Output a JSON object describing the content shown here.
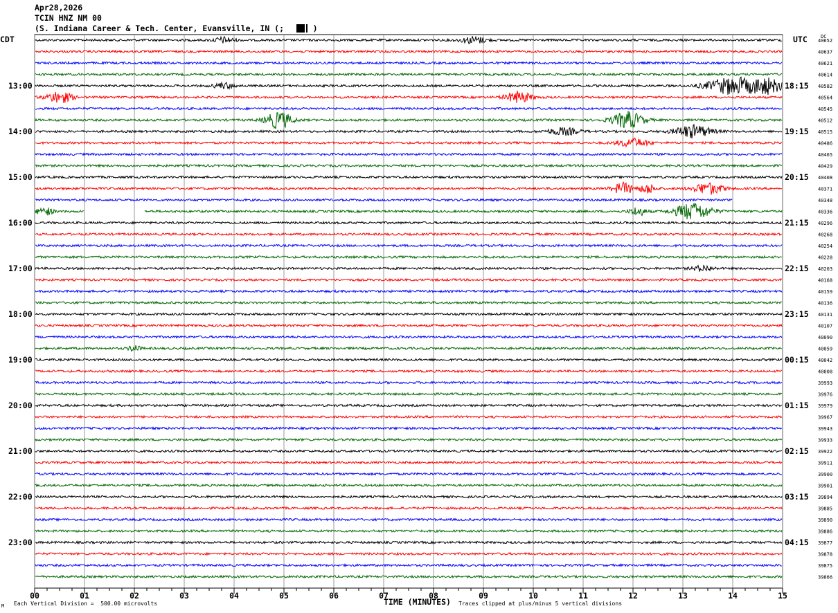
{
  "header": {
    "date": "Apr28,2026",
    "station": "TCIN HNZ NM 00",
    "location": "(S. Indiana Career & Tech. Center, Evansville, IN (;      )"
  },
  "left_timezone": "CDT",
  "right_timezone": "UTC",
  "dc_label": "DC",
  "colors": {
    "cycle": [
      "#000000",
      "#ff0000",
      "#0000ff",
      "#006600"
    ],
    "grid": "#808080"
  },
  "chart_data": {
    "type": "line",
    "title": "",
    "xlabel": "TIME (MINUTES)",
    "xlim": [
      0,
      15
    ],
    "x_ticks": [
      "00",
      "01",
      "02",
      "03",
      "04",
      "05",
      "06",
      "07",
      "08",
      "09",
      "10",
      "11",
      "12",
      "13",
      "14",
      "15"
    ],
    "left_hour_labels": [
      "13:00",
      "14:00",
      "15:00",
      "16:00",
      "17:00",
      "18:00",
      "19:00",
      "20:00",
      "21:00",
      "22:00",
      "23:00"
    ],
    "right_hour_labels": [
      "18:15",
      "19:15",
      "20:15",
      "21:15",
      "22:15",
      "23:15",
      "00:15",
      "01:15",
      "02:15",
      "03:15",
      "04:15"
    ],
    "hour_label_first_trace": 4,
    "dc_values": [
      "40652",
      "40637",
      "40621",
      "40614",
      "40582",
      "40564",
      "40545",
      "40512",
      "40515",
      "40486",
      "40465",
      "40429",
      "40408",
      "40371",
      "40348",
      "40336",
      "40296",
      "40268",
      "40254",
      "40228",
      "40203",
      "40168",
      "40159",
      "40136",
      "40131",
      "40107",
      "40090",
      "40059",
      "40042",
      "40008",
      "39993",
      "39976",
      "39979",
      "39967",
      "39943",
      "39933",
      "39922",
      "39911",
      "39900",
      "39901",
      "39894",
      "39885",
      "39890",
      "39886",
      "39877",
      "39878",
      "39875",
      "39866"
    ],
    "trace_count": 48,
    "minutes_per_trace": 15,
    "events": [
      {
        "trace": 0,
        "t": 8.8,
        "w": 0.25,
        "a": 5
      },
      {
        "trace": 0,
        "t": 3.8,
        "w": 0.2,
        "a": 4
      },
      {
        "trace": 4,
        "t": 14.0,
        "w": 0.5,
        "a": 12
      },
      {
        "trace": 4,
        "t": 14.7,
        "w": 0.3,
        "a": 10
      },
      {
        "trace": 4,
        "t": 3.8,
        "w": 0.2,
        "a": 4
      },
      {
        "trace": 5,
        "t": 0.5,
        "w": 0.25,
        "a": 8
      },
      {
        "trace": 5,
        "t": 9.7,
        "w": 0.25,
        "a": 8
      },
      {
        "trace": 7,
        "t": 4.9,
        "w": 0.25,
        "a": 12
      },
      {
        "trace": 7,
        "t": 11.9,
        "w": 0.3,
        "a": 12
      },
      {
        "trace": 8,
        "t": 13.2,
        "w": 0.35,
        "a": 9
      },
      {
        "trace": 8,
        "t": 10.6,
        "w": 0.3,
        "a": 5
      },
      {
        "trace": 9,
        "t": 12.0,
        "w": 0.3,
        "a": 6
      },
      {
        "trace": 13,
        "t": 11.8,
        "w": 0.2,
        "a": 8
      },
      {
        "trace": 13,
        "t": 12.3,
        "w": 0.15,
        "a": 7
      },
      {
        "trace": 13,
        "t": 13.5,
        "w": 0.3,
        "a": 8
      },
      {
        "trace": 15,
        "t": 0.2,
        "w": 0.15,
        "a": 6
      },
      {
        "trace": 15,
        "t": 13.2,
        "w": 0.35,
        "a": 12
      },
      {
        "trace": 15,
        "t": 12.1,
        "w": 0.15,
        "a": 6
      },
      {
        "trace": 20,
        "t": 13.4,
        "w": 0.2,
        "a": 4
      },
      {
        "trace": 27,
        "t": 2.0,
        "w": 0.1,
        "a": 5
      }
    ],
    "gaps": [
      {
        "trace": 15,
        "from": 1.0,
        "to": 2.2
      },
      {
        "trace": 14,
        "from": 14.0,
        "to": 15.0
      }
    ]
  },
  "footer": {
    "vertical_division": "Each Vertical Division =  500.00 microvolts",
    "clipped": "Traces clipped at plus/minus 5 vertical divisions",
    "corner_mark": "M"
  }
}
